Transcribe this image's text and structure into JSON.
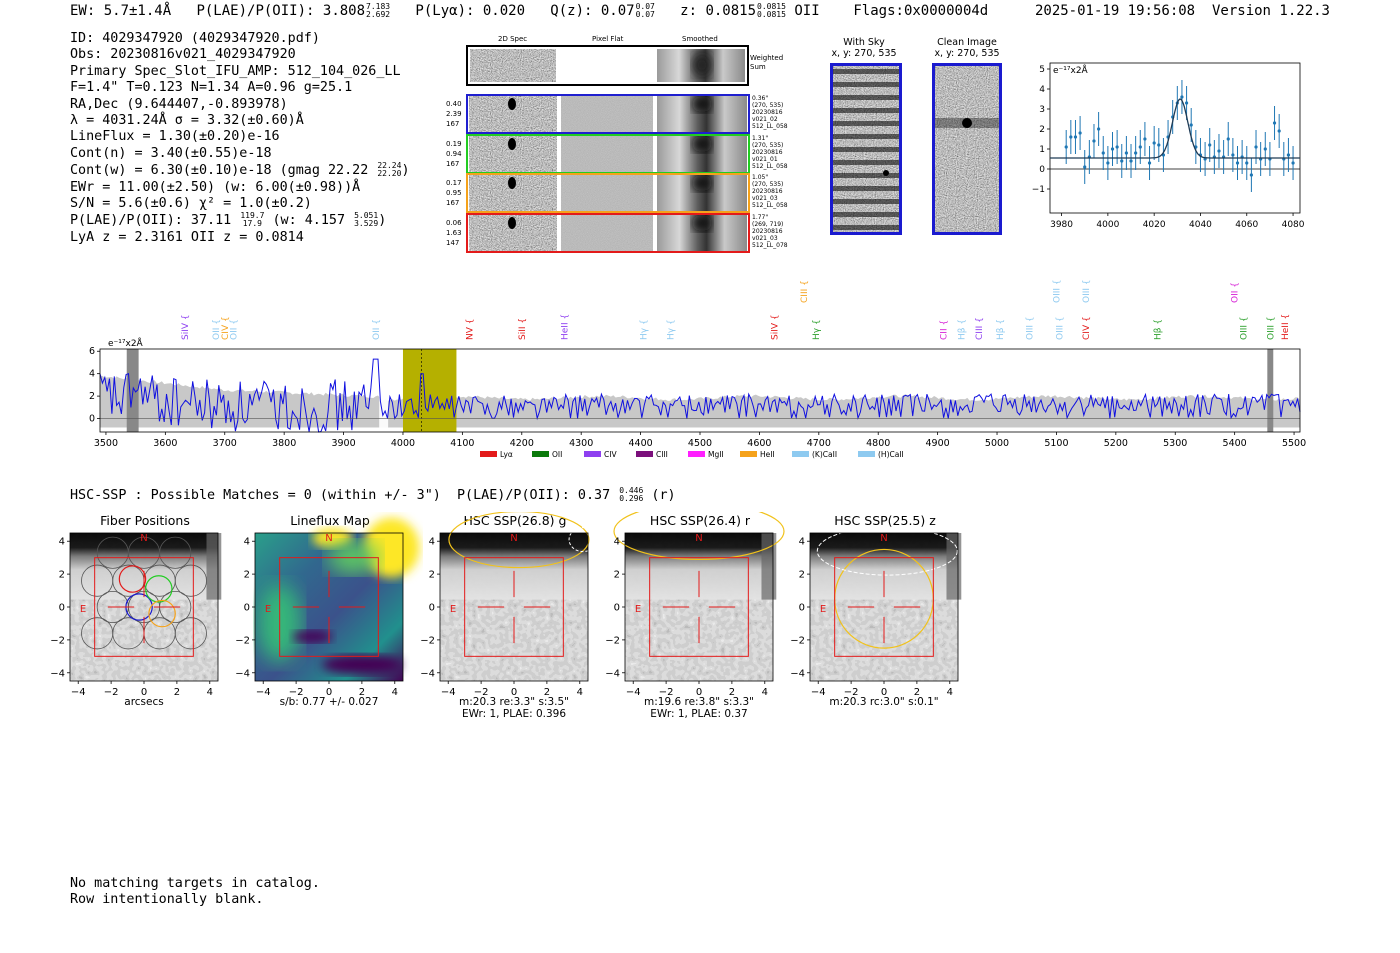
{
  "header": {
    "ew": "EW: 5.7±1.4Å",
    "plae_label": "P(LAE)/P(OII): 3.808",
    "plae_hi": "7.183",
    "plae_lo": "2.692",
    "plya": "P(Lyα): 0.020",
    "q_label": "Q(z): 0.07",
    "q_hi": "0.07",
    "q_lo": "0.07",
    "z_label": "z: 0.0815",
    "z_hi": "0.0815",
    "z_lo": "0.0815",
    "z_line": "OII",
    "flags": "Flags:0x0000004d",
    "datetime": "2025-01-19 19:56:08",
    "version": "Version 1.22.3"
  },
  "info": {
    "id": "ID: 4029347920 (4029347920.pdf)",
    "obs": "Obs: 20230816v021_4029347920",
    "primary": "Primary Spec_Slot_IFU_AMP: 512_104_026_LL",
    "params": "F=1.4\"  T=0.123  N=1.34  A=0.96  g=25.1",
    "radec": "RA,Dec (9.644407,-0.893978)",
    "lambda": "λ = 4031.24Å  σ = 3.32(±0.60)Å",
    "lineflux": "LineFlux = 1.30(±0.20)e-16",
    "contn": "Cont(n) = 3.40(±0.55)e-18",
    "contw": "Cont(w) = 6.30(±0.10)e-18 (gmag 22.22",
    "contw_hi": "22.24",
    "contw_lo": "22.20",
    "contw_end": ")",
    "ewr": "EWr = 11.00(±2.50) (w: 6.00(±0.98))Å",
    "sn": "S/N = 5.6(±0.6)  χ² = 1.0(±0.2)",
    "plae": "P(LAE)/P(OII): 37.11",
    "plae_hi": "119.7",
    "plae_lo": "17.9",
    "plae_w": "(w: 4.157",
    "plae_w_hi": "5.051",
    "plae_w_lo": "3.529",
    "plae_end": ")",
    "z": "LyA z = 2.3161  OII z = 0.0814"
  },
  "cutouts": {
    "col_labels": [
      "2D Spec",
      "Pixel Flat",
      "Smoothed"
    ],
    "weighted_label": "Weighted Sum",
    "rows": [
      {
        "left": [
          "0.40",
          "2.39",
          "167"
        ],
        "right": [
          "0.36\"",
          "(270, 535)",
          "20230816",
          "v021_02",
          "512_LL_058"
        ],
        "color": "#1f1fcf"
      },
      {
        "left": [
          "0.19",
          "0.94",
          "167"
        ],
        "right": [
          "1.31\"",
          "(270, 535)",
          "20230816",
          "v021_01",
          "512_LL_058"
        ],
        "color": "#22cc22"
      },
      {
        "left": [
          "0.17",
          "0.95",
          "167"
        ],
        "right": [
          "1.05\"",
          "(270, 535)",
          "20230816",
          "v021_03",
          "512_LL_058"
        ],
        "color": "#f5a21b"
      },
      {
        "left": [
          "0.06",
          "1.63",
          "147"
        ],
        "right": [
          "1.77\"",
          "(269, 719)",
          "20230816",
          "v021_03",
          "512_LL_078"
        ],
        "color": "#e31a1a"
      }
    ]
  },
  "sky": {
    "with_sky": "With Sky",
    "clean": "Clean Image",
    "coords1": "x, y: 270, 535",
    "coords2": "x, y: 270, 535"
  },
  "chart_data": [
    {
      "type": "scatter",
      "title": "",
      "ylabel": "e⁻¹⁷x2Å",
      "xlim": [
        3975,
        4083
      ],
      "ylim": [
        -2.2,
        5.3
      ],
      "xticks": [
        3980,
        4000,
        4020,
        4040,
        4060,
        4080
      ],
      "yticks": [
        -1,
        0,
        1,
        2,
        3,
        4,
        5
      ],
      "x": [
        3982,
        3984,
        3986,
        3988,
        3990,
        3992,
        3994,
        3996,
        3998,
        4000,
        4002,
        4004,
        4006,
        4008,
        4010,
        4012,
        4014,
        4016,
        4018,
        4020,
        4022,
        4024,
        4026,
        4028,
        4030,
        4032,
        4034,
        4036,
        4038,
        4040,
        4042,
        4044,
        4046,
        4048,
        4050,
        4052,
        4054,
        4056,
        4058,
        4060,
        4062,
        4064,
        4066,
        4068,
        4070,
        4072,
        4074,
        4076,
        4078,
        4080
      ],
      "y": [
        1.1,
        1.6,
        1.6,
        1.8,
        0.1,
        0.6,
        1.4,
        2.0,
        0.8,
        0.3,
        1.0,
        1.1,
        0.4,
        0.8,
        0.4,
        0.8,
        1.1,
        1.5,
        0.3,
        1.3,
        1.2,
        0.7,
        1.6,
        2.6,
        3.3,
        3.6,
        3.3,
        2.2,
        1.1,
        0.7,
        0.5,
        1.2,
        0.6,
        0.9,
        0.6,
        1.5,
        0.7,
        0.3,
        0.6,
        0.3,
        -0.3,
        1.1,
        0.5,
        1.0,
        0.5,
        2.3,
        1.9,
        0.5,
        0.7,
        0.3
      ],
      "yerr": 0.85,
      "model": {
        "center": 4031.24,
        "sigma": 3.32,
        "amp": 2.95,
        "base": 0.55
      }
    },
    {
      "type": "line",
      "title": "",
      "ylabel": "e⁻¹⁷x2Å",
      "xlim": [
        3490,
        5510
      ],
      "ylim": [
        -1.2,
        6.2
      ],
      "xticks": [
        3500,
        3600,
        3700,
        3800,
        3900,
        4000,
        4100,
        4200,
        4300,
        4400,
        4500,
        4600,
        4700,
        4800,
        4900,
        5000,
        5100,
        5200,
        5300,
        5400,
        5500
      ],
      "yticks": [
        0,
        2,
        4,
        6
      ],
      "highlight": [
        4000,
        4090
      ],
      "marker": 4031.24,
      "spectrum_seed": 7,
      "lines": [
        {
          "name": "SiIV",
          "x": 3633,
          "color": "#8e3ff0",
          "row": 1
        },
        {
          "name": "OII",
          "x": 3685,
          "color": "#8ecaf0",
          "row": 1
        },
        {
          "name": "CIV",
          "x": 3700,
          "color": "#f5a21b",
          "row": 1
        },
        {
          "name": "OII",
          "x": 3715,
          "color": "#8ecaf0",
          "row": 1
        },
        {
          "name": "OII",
          "x": 3955,
          "color": "#8ecaf0",
          "row": 1
        },
        {
          "name": "NV",
          "x": 4112,
          "color": "#e31a1a",
          "row": 1
        },
        {
          "name": "SiII",
          "x": 4200,
          "color": "#e31a1a",
          "row": 1
        },
        {
          "name": "HeII",
          "x": 4272,
          "color": "#8e3ff0",
          "row": 1
        },
        {
          "name": "Hγ",
          "x": 4405,
          "color": "#8ecaf0",
          "row": 1
        },
        {
          "name": "Hγ",
          "x": 4450,
          "color": "#8ecaf0",
          "row": 1
        },
        {
          "name": "SiIV",
          "x": 4625,
          "color": "#e31a1a",
          "row": 1
        },
        {
          "name": "CIII",
          "x": 4675,
          "color": "#f5a21b",
          "row": 0
        },
        {
          "name": "Hγ",
          "x": 4695,
          "color": "#2ca02c",
          "row": 1
        },
        {
          "name": "CII",
          "x": 4910,
          "color": "#d61fd6",
          "row": 1
        },
        {
          "name": "Hβ",
          "x": 4940,
          "color": "#8ecaf0",
          "row": 1
        },
        {
          "name": "CIII",
          "x": 4970,
          "color": "#8e3ff0",
          "row": 1
        },
        {
          "name": "Hβ",
          "x": 5005,
          "color": "#8ecaf0",
          "row": 1
        },
        {
          "name": "OIII",
          "x": 5055,
          "color": "#8ecaf0",
          "row": 1
        },
        {
          "name": "OIII",
          "x": 5100,
          "color": "#8ecaf0",
          "row": 0
        },
        {
          "name": "OIII",
          "x": 5105,
          "color": "#8ecaf0",
          "row": 1
        },
        {
          "name": "OIII",
          "x": 5150,
          "color": "#8ecaf0",
          "row": 0
        },
        {
          "name": "CIV",
          "x": 5150,
          "color": "#e31a1a",
          "row": 1
        },
        {
          "name": "Hβ",
          "x": 5270,
          "color": "#2ca02c",
          "row": 1
        },
        {
          "name": "OII",
          "x": 5400,
          "color": "#d61fd6",
          "row": 0
        },
        {
          "name": "OIII",
          "x": 5415,
          "color": "#2ca02c",
          "row": 1
        },
        {
          "name": "OIII",
          "x": 5460,
          "color": "#2ca02c",
          "row": 1
        },
        {
          "name": "HeII",
          "x": 5485,
          "color": "#e31a1a",
          "row": 1
        }
      ],
      "legend": [
        {
          "name": "Lyα",
          "color": "#e31a1a"
        },
        {
          "name": "OII",
          "color": "#0b7a0b"
        },
        {
          "name": "CIV",
          "color": "#8e3ff0"
        },
        {
          "name": "CIII",
          "color": "#7b0f7b"
        },
        {
          "name": "MgII",
          "color": "#ff1fff"
        },
        {
          "name": "HeII",
          "color": "#f5a21b"
        },
        {
          "name": "(K)CaII",
          "color": "#8ecaf0"
        },
        {
          "name": "(H)CaII",
          "color": "#8ecaf0"
        }
      ]
    }
  ],
  "hsc": {
    "summary": "HSC-SSP : Possible Matches = 0 (within +/- 3\")",
    "plae": "P(LAE)/P(OII): 0.37",
    "plae_hi": "0.446",
    "plae_lo": "0.296",
    "plae_band": "(r)",
    "panels": [
      {
        "title": "Fiber Positions",
        "caption1": "arcsecs",
        "caption2": "",
        "kind": "fibers"
      },
      {
        "title": "Lineflux Map",
        "caption1": "s/b: 0.77 +/- 0.027",
        "caption2": "",
        "kind": "lineflux"
      },
      {
        "title": "HSC SSP(26.8) g",
        "caption1": "m:20.3  re:3.3\"  s:3.5\"",
        "caption2": "EWr: 1, PLAE: 0.396",
        "kind": "g"
      },
      {
        "title": "HSC SSP(26.4) r",
        "caption1": "m:19.6  re:3.8\"  s:3.3\"",
        "caption2": "EWr: 1, PLAE: 0.37",
        "kind": "r"
      },
      {
        "title": "HSC SSP(25.5) z",
        "caption1": "m:20.3 rc:3.0\"  s:0.1\"",
        "caption2": "",
        "kind": "z"
      }
    ],
    "ticks": [
      "−4",
      "−2",
      "0",
      "2",
      "4"
    ],
    "n_label": "N",
    "e_label": "E"
  },
  "footer": {
    "line1": "No matching targets in catalog.",
    "line2": "Row intentionally blank."
  }
}
